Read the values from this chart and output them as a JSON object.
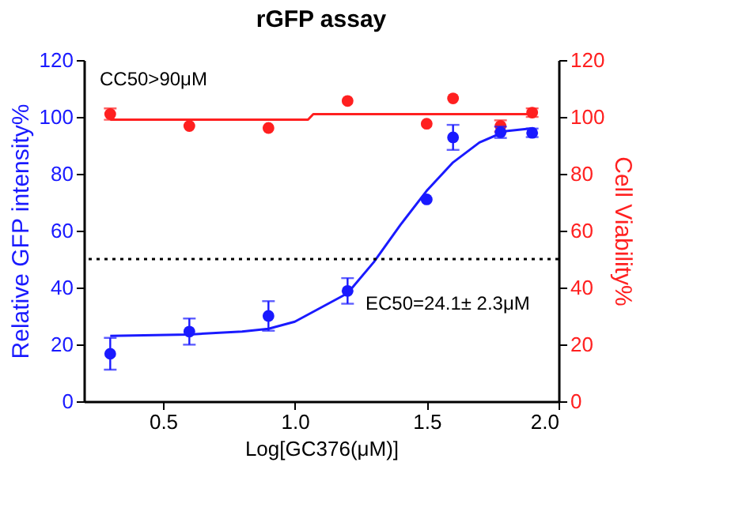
{
  "chart_data": {
    "type": "scatter",
    "title": "rGFP assay",
    "xlabel": "Log[GC376(μM)]",
    "ylabel": "Relative GFP intensity%",
    "y2label": "Cell Viability%",
    "annotations": [
      "CC50>90μM",
      "EC50=24.1± 2.3μM"
    ],
    "xlim": [
      0.2,
      2.0
    ],
    "xticks": [
      0.5,
      {
        "value": 1.0,
        "label": "1.0"
      },
      1.5,
      {
        "value": 2.0,
        "label": "2.0"
      }
    ],
    "ylim": [
      0,
      120
    ],
    "yticks": [
      0,
      20,
      40,
      60,
      80,
      100,
      120
    ],
    "y2lim": [
      0,
      120
    ],
    "y2ticks": [
      0,
      20,
      40,
      60,
      80,
      100,
      120
    ],
    "marker": "circle",
    "ref_lines": [
      {
        "axis": "y",
        "value": 50,
        "color": "#000000",
        "line_style": "dotted"
      }
    ],
    "series": [
      {
        "type": "line",
        "color": "#1a1aff",
        "marker": "none",
        "x": [
          0.3,
          0.6,
          0.8,
          0.9,
          1.0,
          1.1,
          1.2,
          1.3,
          1.4,
          1.5,
          1.6,
          1.7,
          1.8,
          1.9
        ],
        "values": [
          23,
          23.5,
          24.5,
          25.5,
          28,
          33,
          38,
          49,
          62,
          74,
          84,
          91,
          95,
          96
        ]
      },
      {
        "type": "line",
        "axis": "y2",
        "color": "#ff2020",
        "marker": "none",
        "x": [
          0.3,
          1.05,
          1.07,
          1.9
        ],
        "values": [
          99,
          99,
          101,
          101
        ]
      },
      {
        "color": "#1a1aff",
        "x": [
          0.3,
          0.6,
          0.9,
          1.2,
          1.5,
          1.6,
          1.78,
          1.9
        ],
        "values": [
          16.7,
          24.5,
          30,
          38.8,
          71,
          92.8,
          94.6,
          94.4
        ],
        "errors": [
          5.6,
          4.6,
          5.2,
          4.5,
          null,
          4.4,
          2,
          1.5
        ]
      },
      {
        "axis": "y2",
        "color": "#ff2020",
        "x": [
          0.3,
          0.6,
          0.9,
          1.2,
          1.5,
          1.6,
          1.78,
          1.9
        ],
        "values": [
          101,
          96.8,
          96.1,
          105.6,
          97.6,
          106.5,
          96.8,
          101.5
        ],
        "errors": [
          2,
          null,
          null,
          null,
          null,
          null,
          2,
          1.5
        ]
      }
    ]
  }
}
